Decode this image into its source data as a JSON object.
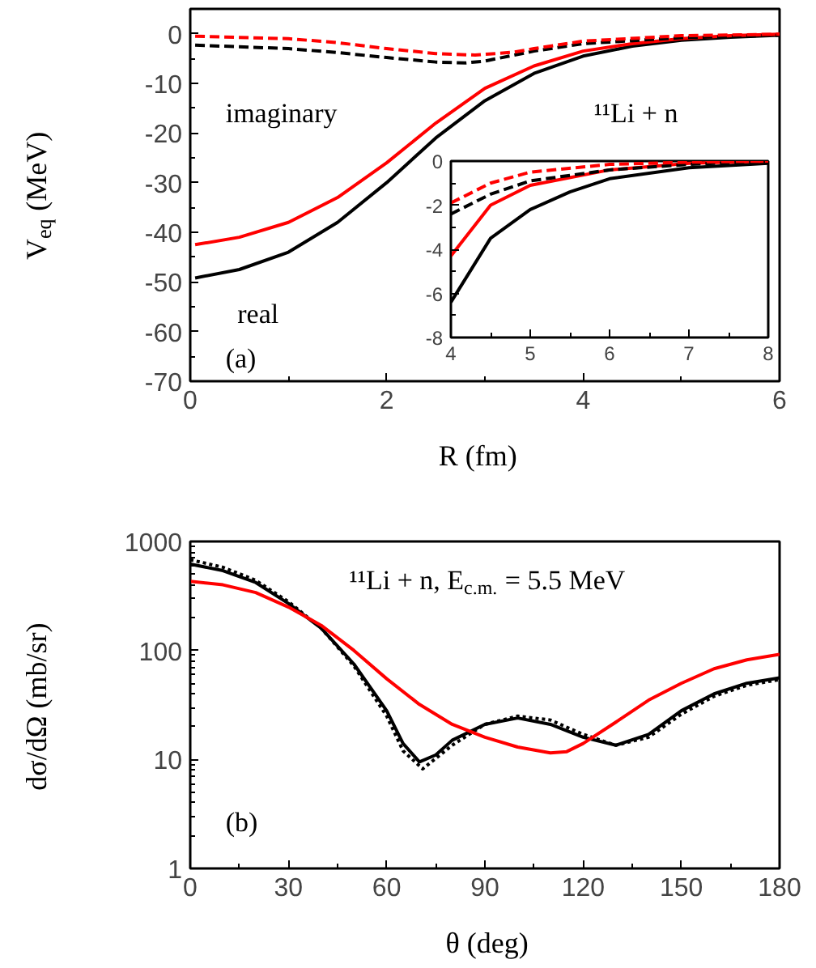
{
  "chart_data": [
    {
      "type": "line",
      "xlabel": "R (fm)",
      "ylabel": "V$_{eq}$ (MeV)",
      "xlim": [
        0,
        6
      ],
      "ylim": [
        -70,
        5
      ],
      "xticks": [
        0,
        2,
        4,
        6
      ],
      "yticks": [
        -70,
        -60,
        -50,
        -40,
        -30,
        -20,
        -10,
        0
      ],
      "grid": false,
      "legend": false,
      "annotations": [
        "imaginary",
        "¹¹Li + n",
        "real",
        "(a)"
      ],
      "series": [
        {
          "color": "#000000",
          "line_style": "solid",
          "x": [
            0.05,
            0.5,
            1,
            1.5,
            2,
            2.5,
            3,
            3.5,
            4,
            4.5,
            5,
            5.5,
            6
          ],
          "values": [
            -49.2,
            -47.5,
            -44,
            -38,
            -30,
            -21,
            -13.5,
            -8,
            -4.5,
            -2.5,
            -1.3,
            -0.7,
            -0.3
          ]
        },
        {
          "color": "#ff0000",
          "line_style": "solid",
          "x": [
            0.05,
            0.5,
            1,
            1.5,
            2,
            2.5,
            3,
            3.5,
            4,
            4.5,
            5,
            5.5,
            6
          ],
          "values": [
            -42.5,
            -41,
            -38,
            -33,
            -26,
            -18,
            -11,
            -6.5,
            -3.5,
            -2,
            -1,
            -0.4,
            -0.1
          ]
        },
        {
          "color": "#000000",
          "line_style": "dashed",
          "x": [
            0.05,
            1,
            1.5,
            2,
            2.5,
            2.8,
            3,
            3.5,
            4,
            5,
            6
          ],
          "values": [
            -2.3,
            -3,
            -3.8,
            -4.8,
            -5.7,
            -5.9,
            -5.5,
            -3.5,
            -2,
            -0.8,
            -0.3
          ]
        },
        {
          "color": "#ff0000",
          "line_style": "dashed",
          "x": [
            0.05,
            1,
            1.5,
            2,
            2.5,
            2.9,
            3.3,
            3.5,
            4,
            5,
            6
          ],
          "values": [
            -0.5,
            -1,
            -1.8,
            -3,
            -4,
            -4.3,
            -3.7,
            -3,
            -1.5,
            -0.4,
            -0.1
          ]
        }
      ]
    },
    {
      "type": "line",
      "xlim": [
        4,
        8
      ],
      "ylim": [
        -8,
        0
      ],
      "xticks": [
        4,
        5,
        6,
        7,
        8
      ],
      "yticks": [
        -8,
        -6,
        -4,
        -2,
        0
      ],
      "grid": false,
      "legend": false,
      "series": [
        {
          "color": "#000000",
          "line_style": "solid",
          "x": [
            4,
            4.5,
            5,
            5.5,
            6,
            7,
            8
          ],
          "values": [
            -6.4,
            -3.5,
            -2.2,
            -1.4,
            -0.8,
            -0.3,
            -0.1
          ]
        },
        {
          "color": "#ff0000",
          "line_style": "solid",
          "x": [
            4,
            4.5,
            5,
            6,
            7,
            8
          ],
          "values": [
            -4.3,
            -2,
            -1.1,
            -0.4,
            -0.1,
            0
          ]
        },
        {
          "color": "#000000",
          "line_style": "dashed",
          "x": [
            4,
            4.5,
            5,
            6,
            7,
            8
          ],
          "values": [
            -2.4,
            -1.5,
            -0.9,
            -0.4,
            -0.15,
            0
          ]
        },
        {
          "color": "#ff0000",
          "line_style": "dashed",
          "x": [
            4,
            4.5,
            5,
            6,
            7,
            8
          ],
          "values": [
            -1.9,
            -1,
            -0.5,
            -0.15,
            -0.05,
            0
          ]
        }
      ]
    },
    {
      "type": "line",
      "xlabel": "θ (deg)",
      "ylabel": "dσ/dΩ (mb/sr)",
      "log": "y",
      "xlim": [
        0,
        180
      ],
      "ylim": [
        1,
        1000
      ],
      "xticks": [
        0,
        30,
        60,
        90,
        120,
        150,
        180
      ],
      "yticks": [
        1,
        10,
        100,
        1000
      ],
      "grid": false,
      "legend": false,
      "annotations": [
        "¹¹Li + n, E$_{c.m.}$ = 5.5 MeV",
        "(b)"
      ],
      "series": [
        {
          "color": "#000000",
          "line_style": "solid",
          "x": [
            0,
            10,
            20,
            30,
            40,
            50,
            60,
            65,
            70,
            75,
            80,
            90,
            100,
            110,
            120,
            130,
            140,
            150,
            160,
            170,
            180
          ],
          "values": [
            620,
            540,
            420,
            270,
            160,
            75,
            28,
            14,
            9.5,
            11,
            15,
            21,
            24,
            21,
            16,
            13.5,
            17,
            28,
            40,
            50,
            56
          ]
        },
        {
          "color": "#000000",
          "line_style": "dotted",
          "x": [
            0,
            10,
            20,
            30,
            40,
            50,
            60,
            65,
            71,
            80,
            90,
            100,
            110,
            120,
            130,
            140,
            150,
            160,
            170,
            180
          ],
          "values": [
            680,
            580,
            440,
            280,
            160,
            72,
            25,
            12,
            8.2,
            13.5,
            21,
            25,
            23,
            17,
            13.5,
            16,
            26,
            38,
            48,
            54
          ]
        },
        {
          "color": "#ff0000",
          "line_style": "solid",
          "x": [
            0,
            10,
            20,
            30,
            40,
            50,
            60,
            70,
            80,
            90,
            100,
            110,
            115,
            120,
            130,
            140,
            150,
            160,
            170,
            180
          ],
          "values": [
            430,
            400,
            340,
            250,
            170,
            100,
            55,
            32,
            21,
            16,
            13,
            11.5,
            11.8,
            14,
            22,
            35,
            50,
            68,
            82,
            92
          ]
        }
      ]
    }
  ]
}
